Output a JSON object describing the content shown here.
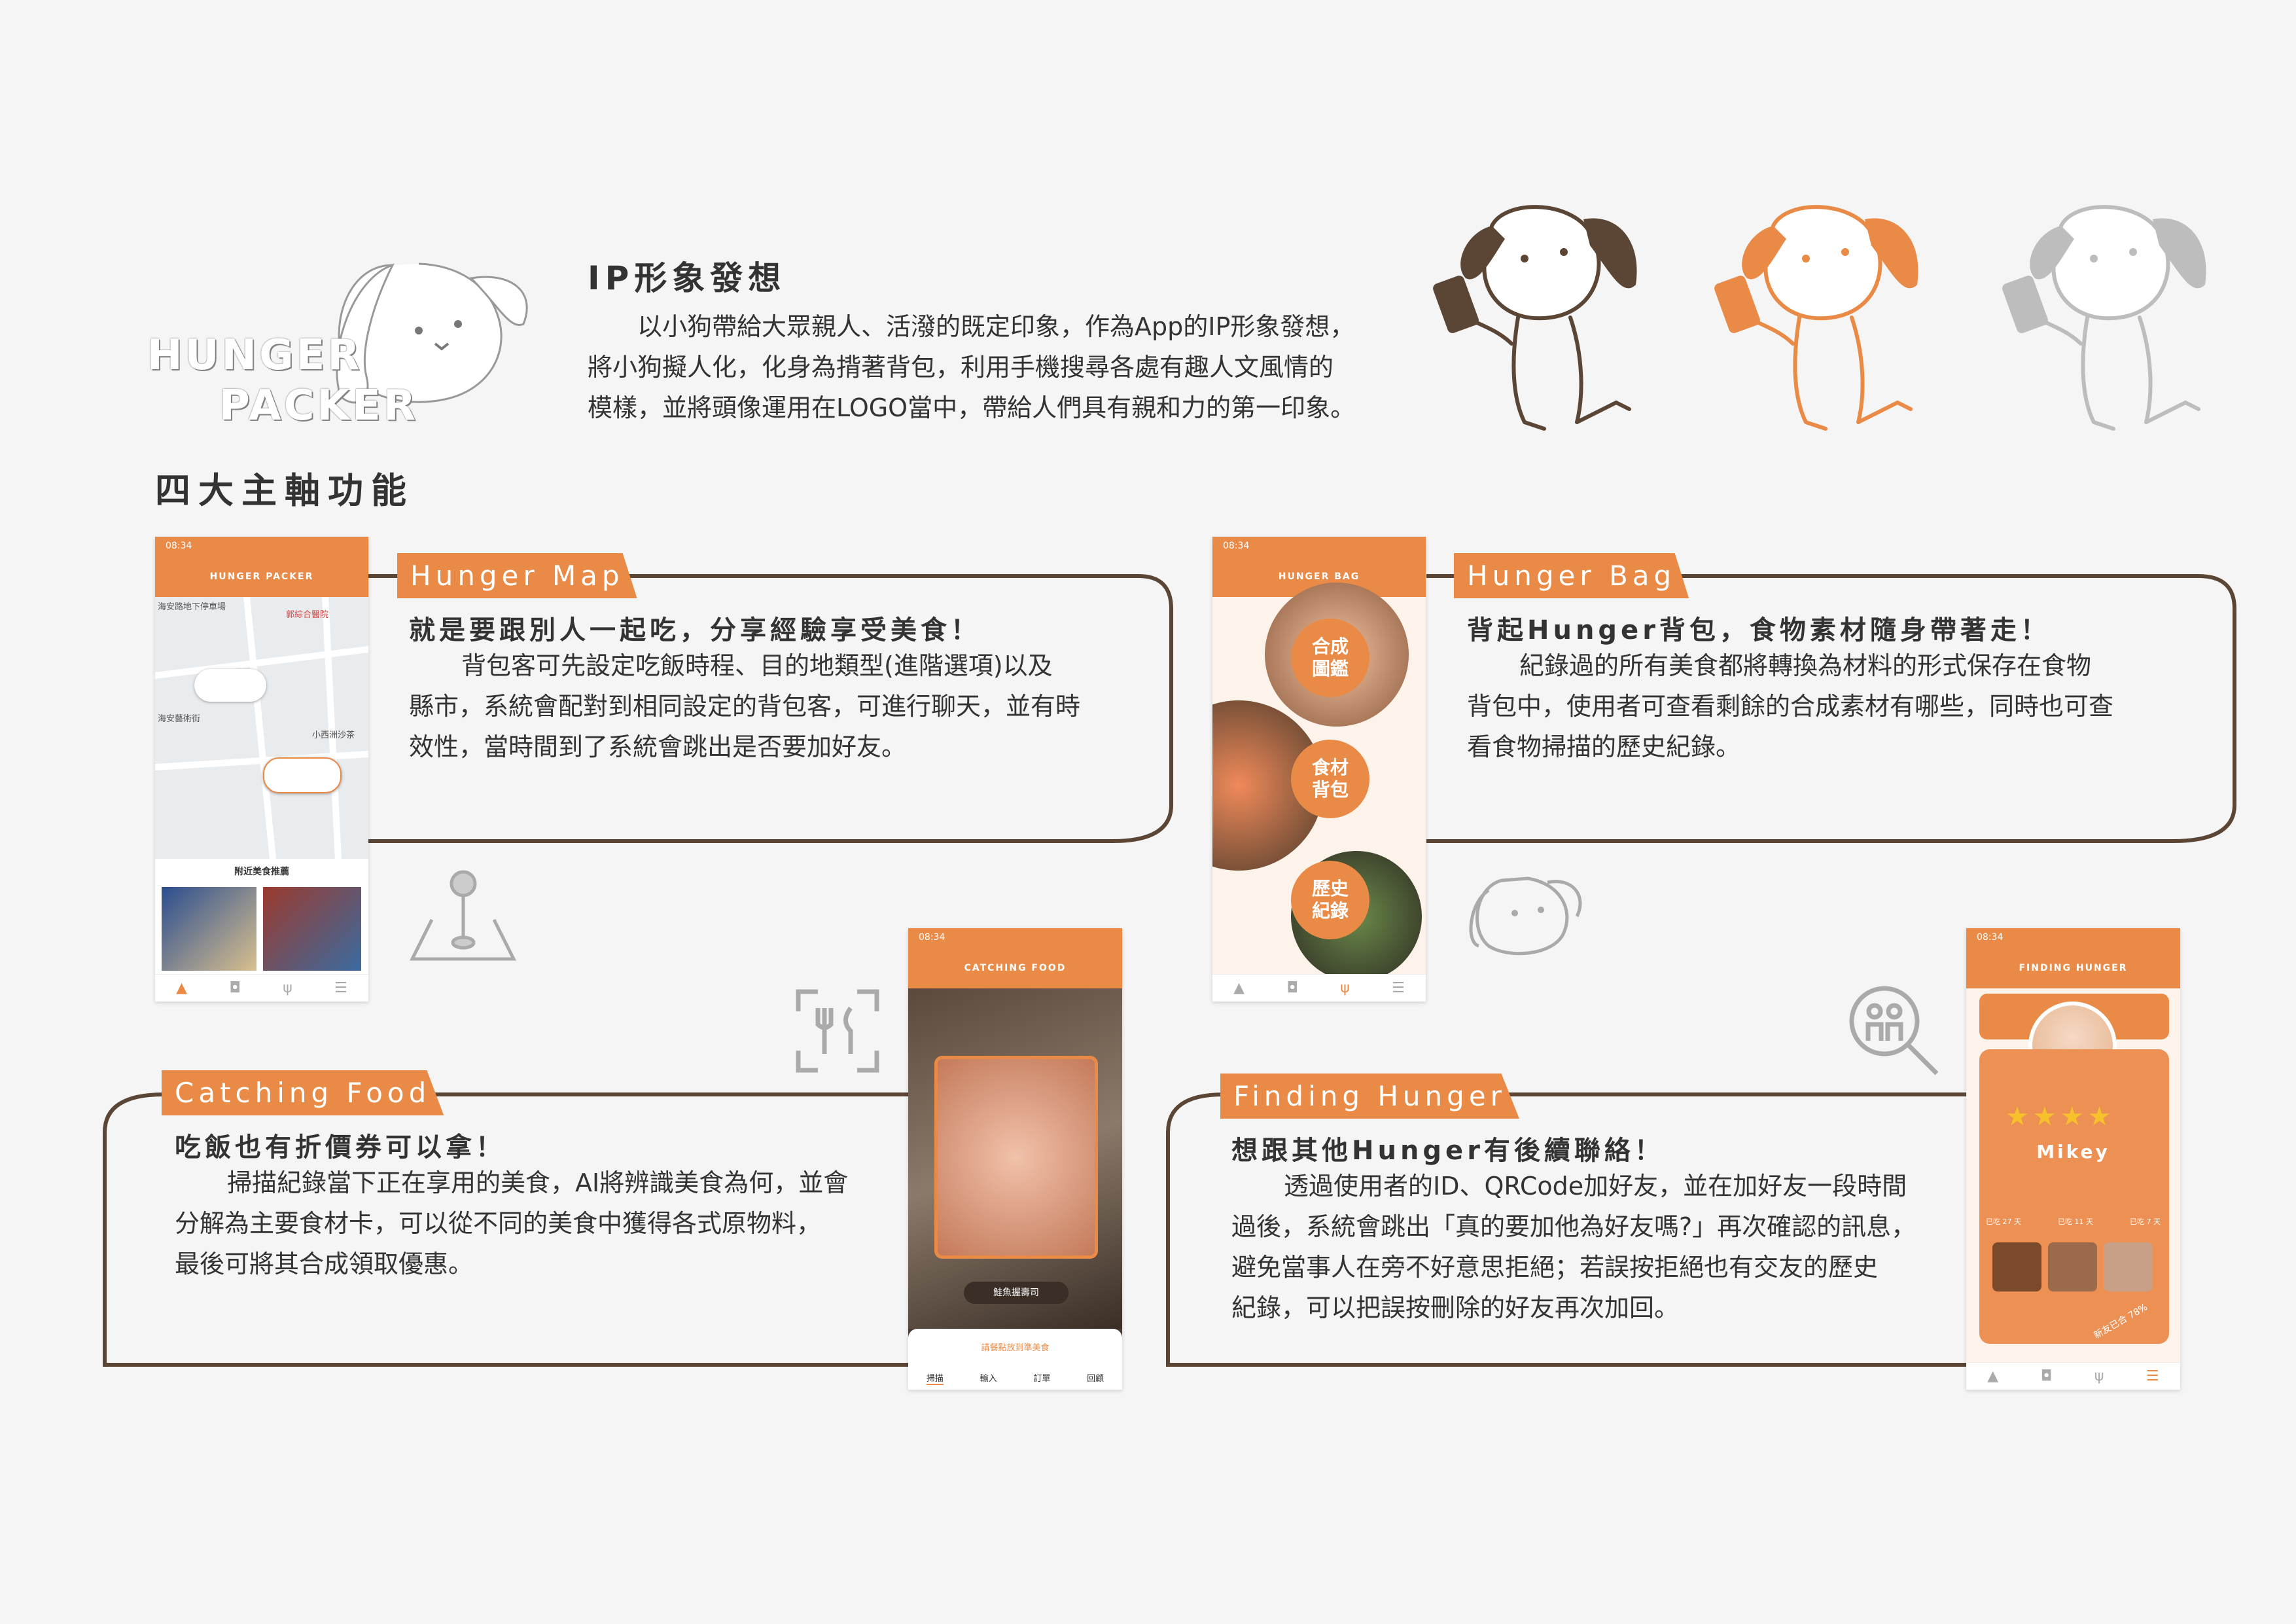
{
  "logo": {
    "line1": "HUNGER",
    "line2": "PACKER"
  },
  "ip": {
    "title": "IP形象發想",
    "lines": [
      "以小狗帶給大眾親人、活潑的既定印象，作為App的IP形象發想，",
      "將小狗擬人化，化身為揹著背包，利用手機搜尋各處有趣人文風情的",
      "模樣，並將頭像運用在LOGO當中，帶給人們具有親和力的第一印象。"
    ]
  },
  "four_title": "四大主軸功能",
  "colors": {
    "accent": "#e98a46",
    "brown": "#5b4636",
    "grey": "#bdbdbd"
  },
  "map": {
    "tag": "Hunger Map",
    "sub": "就是要跟別人一起吃，分享經驗享受美食！",
    "lines": [
      "背包客可先設定吃飯時程、目的地類型(進階選項)以及",
      "縣市，系統會配對到相同設定的背包客，可進行聊天，並有時",
      "效性，當時間到了系統會跳出是否要加好友。"
    ],
    "phone": {
      "time": "08:34",
      "title": "HUNGER PACKER",
      "recommend": "附近美食推薦",
      "place1": "海安路地下停車場",
      "place2": "郭綜合醫院",
      "place3": "海安藝術街",
      "place4": "小西洲沙茶"
    }
  },
  "bag": {
    "tag": "Hunger Bag",
    "sub": "背起Hunger背包，食物素材隨身帶著走！",
    "lines": [
      "紀錄過的所有美食都將轉換為材料的形式保存在食物",
      "背包中，使用者可查看剩餘的合成素材有哪些，同時也可查",
      "看食物掃描的歷史紀錄。"
    ],
    "phone": {
      "time": "08:34",
      "title": "HUNGER BAG",
      "btn1": "合成圖鑑",
      "btn2": "食材背包",
      "btn3": "歷史紀錄"
    }
  },
  "catching": {
    "tag": "Catching Food",
    "sub": "吃飯也有折價券可以拿！",
    "lines": [
      "掃描紀錄當下正在享用的美食，AI將辨識美食為何，並會",
      "分解為主要食材卡，可以從不同的美食中獲得各式原物料，",
      "最後可將其合成領取優惠。"
    ],
    "phone": {
      "time": "08:34",
      "title": "CATCHING FOOD",
      "result": "鮭魚握壽司",
      "hint": "請餐點放到準美食",
      "tabs": [
        "掃描",
        "輸入",
        "訂單",
        "回顧"
      ]
    }
  },
  "finding": {
    "tag": "Finding Hunger",
    "sub": "想跟其他Hunger有後續聯絡！",
    "lines": [
      "透過使用者的ID、QRCode加好友，並在加好友一段時間",
      "過後，系統會跳出「真的要加他為好友嗎?」再次確認的訊息，",
      "避免當事人在旁不好意思拒絕；若誤按拒絕也有交友的歷史",
      "紀錄，可以把誤按刪除的好友再次加回。"
    ],
    "phone": {
      "time": "08:34",
      "title": "FINDING HUNGER",
      "name": "Mikey",
      "stats": [
        "已吃 27 天",
        "已吃 11 天",
        "已吃 7 天"
      ],
      "badge": "新友已合 78%"
    }
  }
}
